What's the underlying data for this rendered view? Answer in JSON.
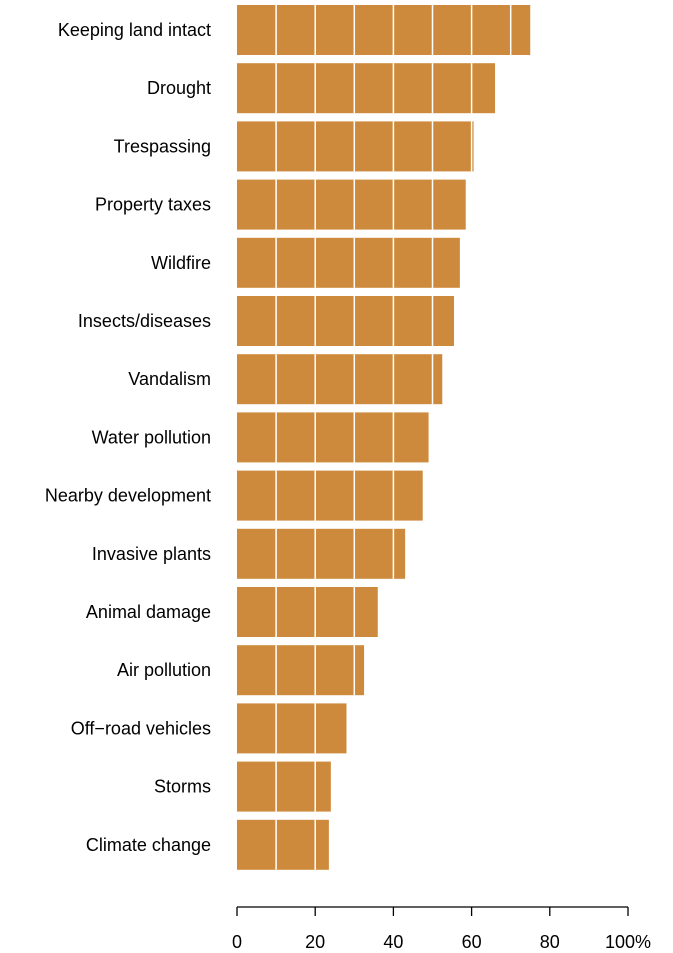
{
  "chart_data": {
    "type": "bar",
    "orientation": "horizontal",
    "title": "",
    "xlabel": "",
    "ylabel": "",
    "categories": [
      "Keeping land intact",
      "Drought",
      "Trespassing",
      "Property taxes",
      "Wildfire",
      "Insects/diseases",
      "Vandalism",
      "Water pollution",
      "Nearby development",
      "Invasive plants",
      "Animal damage",
      "Air pollution",
      "Off−road vehicles",
      "Storms",
      "Climate change"
    ],
    "values": [
      75,
      66,
      60.5,
      58.5,
      57,
      55.5,
      52.5,
      49,
      47.5,
      43,
      36,
      32.5,
      28,
      24,
      23.5
    ],
    "xlim": [
      0,
      100
    ],
    "xticks": [
      0,
      20,
      40,
      60,
      80,
      100
    ],
    "xtick_labels": [
      "0",
      "20",
      "40",
      "60",
      "80",
      "100%"
    ],
    "gridlines_every": 10,
    "grid": true,
    "bar_color": "#cd8a3c",
    "grid_color": "#ffffff"
  }
}
